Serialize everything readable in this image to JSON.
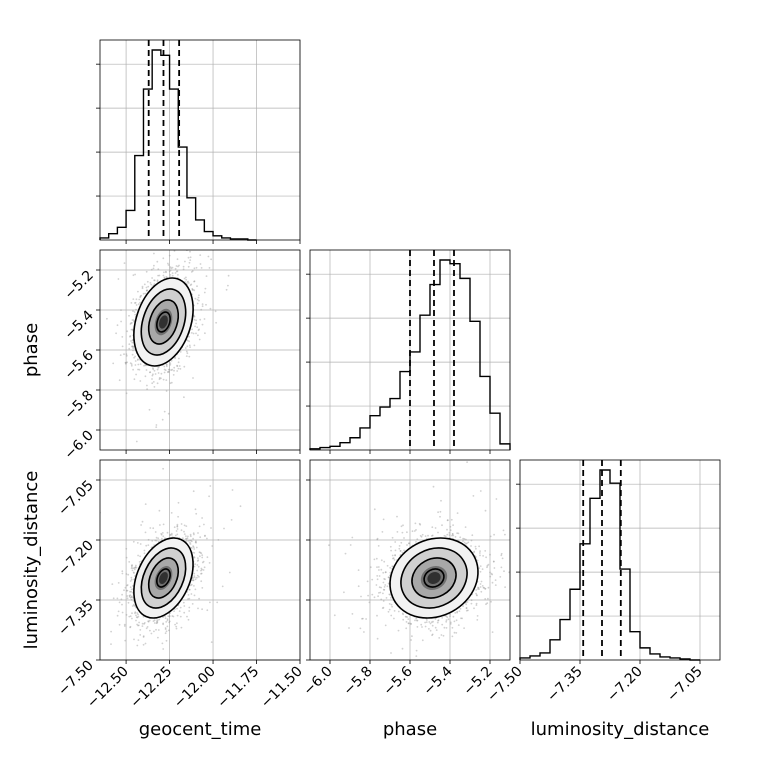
{
  "chart_data": {
    "type": "corner",
    "parameters": [
      "geocent_time",
      "phase",
      "luminosity_distance"
    ],
    "axes": {
      "geocent_time": {
        "label": "geocent_time",
        "range": [
          -12.65,
          -11.5
        ],
        "ticks": [
          -12.5,
          -12.25,
          -12.0,
          -11.75,
          -11.5
        ],
        "tick_labels": [
          "−12.50",
          "−12.25",
          "−12.00",
          "−11.75",
          "−11.50"
        ]
      },
      "phase": {
        "label": "phase",
        "range": [
          -6.1,
          -5.1
        ],
        "ticks": [
          -6.0,
          -5.8,
          -5.6,
          -5.4,
          -5.2
        ],
        "tick_labels": [
          "−6.0",
          "−5.8",
          "−5.6",
          "−5.4",
          "−5.2"
        ]
      },
      "luminosity_distance": {
        "label": "luminosity_distance",
        "range": [
          -7.5,
          -7.0
        ],
        "ticks": [
          -7.5,
          -7.35,
          -7.2,
          -7.05
        ],
        "tick_labels": [
          "−7.50",
          "−7.35",
          "−7.20",
          "−7.05"
        ]
      }
    },
    "histograms": {
      "geocent_time": {
        "bin_edges": [
          -12.65,
          -12.6,
          -12.55,
          -12.5,
          -12.45,
          -12.4,
          -12.35,
          -12.3,
          -12.25,
          -12.2,
          -12.15,
          -12.1,
          -12.05,
          -12.0,
          -11.95,
          -11.9,
          -11.85,
          -11.8,
          -11.75
        ],
        "counts": [
          2,
          6,
          12,
          28,
          80,
          143,
          180,
          175,
          143,
          88,
          40,
          19,
          8,
          4,
          2,
          1,
          1,
          0
        ],
        "quantiles": [
          -12.37,
          -12.285,
          -12.195
        ]
      },
      "phase": {
        "bin_edges": [
          -6.1,
          -6.05,
          -6.0,
          -5.95,
          -5.9,
          -5.85,
          -5.8,
          -5.75,
          -5.7,
          -5.65,
          -5.6,
          -5.55,
          -5.5,
          -5.45,
          -5.4,
          -5.35,
          -5.3,
          -5.25,
          -5.2,
          -5.15,
          -5.1
        ],
        "counts": [
          1,
          2,
          3,
          6,
          10,
          18,
          28,
          35,
          42,
          64,
          80,
          110,
          135,
          155,
          152,
          140,
          105,
          60,
          30,
          5
        ],
        "quantiles": [
          -5.6,
          -5.48,
          -5.38
        ]
      },
      "luminosity_distance": {
        "bin_edges": [
          -7.5,
          -7.475,
          -7.45,
          -7.425,
          -7.4,
          -7.375,
          -7.35,
          -7.325,
          -7.3,
          -7.275,
          -7.25,
          -7.225,
          -7.2,
          -7.175,
          -7.15,
          -7.125,
          -7.1,
          -7.075,
          -7.05
        ],
        "counts": [
          2,
          4,
          7,
          20,
          40,
          70,
          115,
          160,
          188,
          175,
          90,
          28,
          12,
          6,
          3,
          2,
          1,
          0
        ],
        "quantiles": [
          -7.342,
          -7.295,
          -7.248
        ]
      }
    },
    "joint": [
      {
        "x": "geocent_time",
        "y": "phase",
        "center": [
          -12.285,
          -5.46
        ],
        "sigma": [
          0.085,
          0.11
        ],
        "correlation": 0.3
      },
      {
        "x": "geocent_time",
        "y": "luminosity_distance",
        "center": [
          -12.285,
          -7.295
        ],
        "sigma": [
          0.085,
          0.05
        ],
        "correlation": 0.35
      },
      {
        "x": "phase",
        "y": "luminosity_distance",
        "center": [
          -5.48,
          -7.295
        ],
        "sigma": [
          0.11,
          0.05
        ],
        "correlation": 0.15
      }
    ],
    "grid": true
  },
  "colors": {
    "line": "#000000",
    "grid": "#b0b0b0",
    "scatter": "#999999",
    "density_max": "#000000",
    "density_min": "#ffffff"
  }
}
